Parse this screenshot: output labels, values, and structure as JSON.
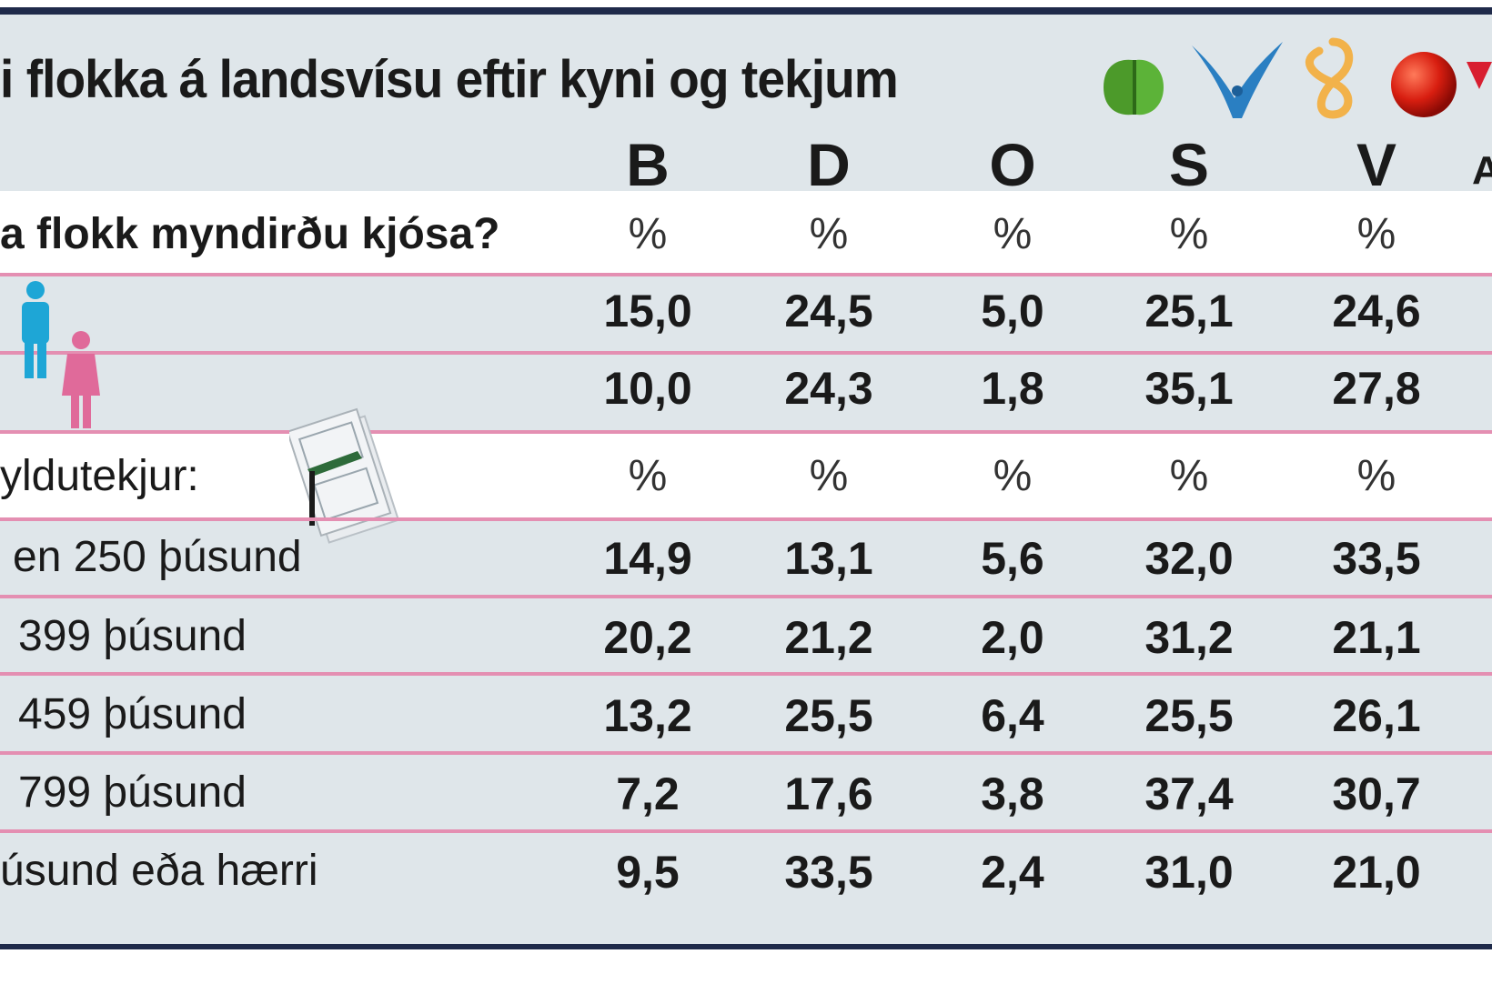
{
  "chart_data": {
    "type": "table",
    "title": "i flokka á landsvísu eftir kyni og tekjum",
    "columns": [
      "B",
      "D",
      "O",
      "S",
      "V"
    ],
    "sections": [
      {
        "label": "a flokk myndirðu kjósa?",
        "unit_row": [
          "%",
          "%",
          "%",
          "%",
          "%"
        ],
        "rows": [
          {
            "label": "",
            "values": [
              "15,0",
              "24,5",
              "5,0",
              "25,1",
              "24,6"
            ]
          },
          {
            "label": "",
            "values": [
              "10,0",
              "24,3",
              "1,8",
              "35,1",
              "27,8"
            ]
          }
        ]
      },
      {
        "label": "yldutekjur:",
        "unit_row": [
          "%",
          "%",
          "%",
          "%",
          "%"
        ],
        "rows": [
          {
            "label": "en 250 þúsund",
            "values": [
              "14,9",
              "13,1",
              "5,6",
              "32,0",
              "33,5"
            ]
          },
          {
            "label": "399 þúsund",
            "values": [
              "20,2",
              "21,2",
              "2,0",
              "31,2",
              "21,1"
            ]
          },
          {
            "label": "459 þúsund",
            "values": [
              "13,2",
              "25,5",
              "6,4",
              "25,5",
              "26,1"
            ]
          },
          {
            "label": "799 þúsund",
            "values": [
              "7,2",
              "17,6",
              "3,8",
              "37,4",
              "30,7"
            ]
          },
          {
            "label": "úsund eða hærri",
            "values": [
              "9,5",
              "33,5",
              "2,4",
              "31,0",
              "21,0"
            ]
          }
        ]
      }
    ],
    "partial_column_header": "A"
  },
  "icons": {
    "party_logos": [
      "green-leaf-logo-icon",
      "blue-falcon-logo-icon",
      "orange-knot-logo-icon",
      "red-rose-logo-icon",
      "red-v-logo-icon"
    ],
    "gender": [
      "male-figure-icon",
      "female-figure-icon"
    ],
    "money": "banknote-stack-icon"
  },
  "colors": {
    "background": "#dfe6ea",
    "border": "#1f2a4a",
    "row_divider": "#e48fb2",
    "male": "#1ea6d6",
    "female": "#e06a9a"
  }
}
